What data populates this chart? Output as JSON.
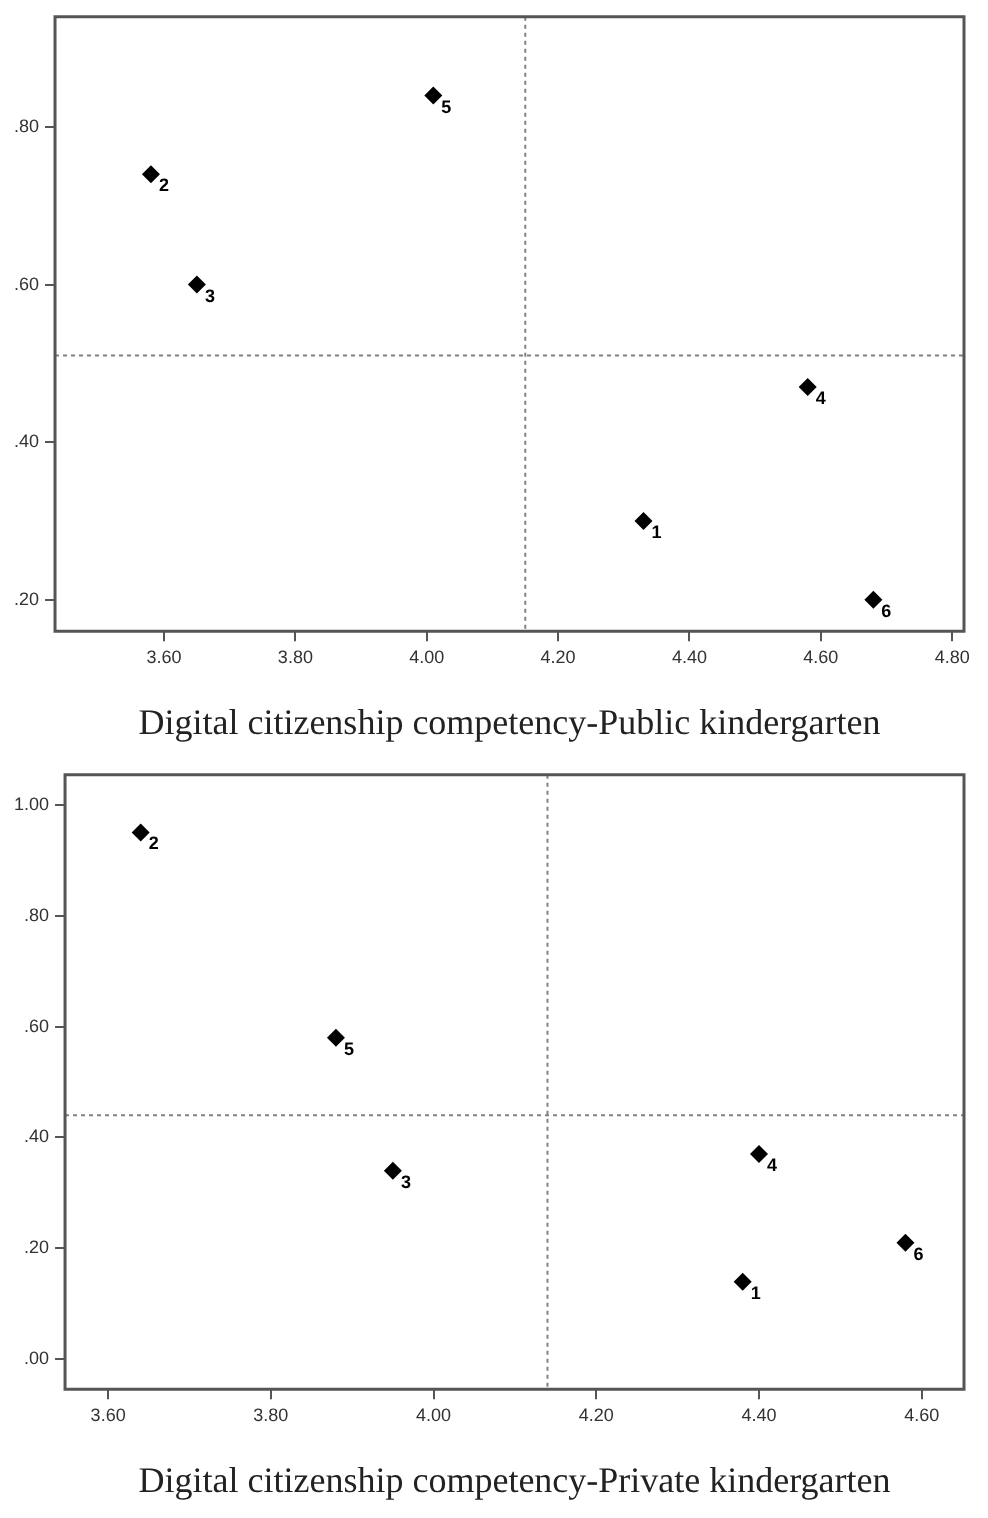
{
  "chart_data": [
    {
      "type": "scatter",
      "xlabel": "Digital citizenship competency-Public kindergarten",
      "series": [
        {
          "color": "#000000",
          "x": [
            4.33,
            3.58,
            3.65,
            4.58,
            4.01,
            4.68
          ],
          "values": [
            0.3,
            0.74,
            0.6,
            0.47,
            0.84,
            0.2
          ]
        }
      ],
      "marker": "diamond",
      "grid": false,
      "legend": false,
      "xlim": [
        3.434,
        4.818
      ],
      "ylim": [
        0.16,
        0.94
      ],
      "xticks": [
        {
          "value": 3.6,
          "label": "3.60"
        },
        {
          "value": 3.8,
          "label": "3.80"
        },
        {
          "value": 4.0,
          "label": "4.00"
        },
        {
          "value": 4.2,
          "label": "4.20"
        },
        {
          "value": 4.4,
          "label": "4.40"
        },
        {
          "value": 4.6,
          "label": "4.60"
        },
        {
          "value": 4.8,
          "label": "4.80"
        }
      ],
      "yticks": [
        {
          "value": 0.2,
          "label": ".20"
        },
        {
          "value": 0.4,
          "label": ".40"
        },
        {
          "value": 0.6,
          "label": ".60"
        },
        {
          "value": 0.8,
          "label": ".80"
        }
      ],
      "ref_lines": [
        {
          "axis": "x",
          "value": 4.15,
          "color": "#808080",
          "line_style": "dotted"
        },
        {
          "axis": "y",
          "value": 0.51,
          "color": "#808080",
          "line_style": "dotted"
        }
      ],
      "annotations": [
        {
          "text": "1",
          "x": 4.33,
          "y": 0.3
        },
        {
          "text": "2",
          "x": 3.58,
          "y": 0.74
        },
        {
          "text": "3",
          "x": 3.65,
          "y": 0.6
        },
        {
          "text": "4",
          "x": 4.58,
          "y": 0.47
        },
        {
          "text": "5",
          "x": 4.01,
          "y": 0.84
        },
        {
          "text": "6",
          "x": 4.68,
          "y": 0.2
        }
      ]
    },
    {
      "type": "scatter",
      "xlabel": "Digital citizenship competency-Private kindergarten",
      "series": [
        {
          "color": "#000000",
          "x": [
            4.38,
            3.64,
            3.95,
            4.4,
            3.88,
            4.58
          ],
          "values": [
            0.14,
            0.95,
            0.34,
            0.37,
            0.58,
            0.21
          ]
        }
      ],
      "marker": "diamond",
      "grid": false,
      "legend": false,
      "xlim": [
        3.547,
        4.652
      ],
      "ylim": [
        -0.054,
        1.054
      ],
      "xticks": [
        {
          "value": 3.6,
          "label": "3.60"
        },
        {
          "value": 3.8,
          "label": "3.80"
        },
        {
          "value": 4.0,
          "label": "4.00"
        },
        {
          "value": 4.2,
          "label": "4.20"
        },
        {
          "value": 4.4,
          "label": "4.40"
        },
        {
          "value": 4.6,
          "label": "4.60"
        }
      ],
      "yticks": [
        {
          "value": 0.0,
          "label": ".00"
        },
        {
          "value": 0.2,
          "label": ".20"
        },
        {
          "value": 0.4,
          "label": ".40"
        },
        {
          "value": 0.6,
          "label": ".60"
        },
        {
          "value": 0.8,
          "label": ".80"
        },
        {
          "value": 1.0,
          "label": "1.00"
        }
      ],
      "ref_lines": [
        {
          "axis": "x",
          "value": 4.14,
          "color": "#808080",
          "line_style": "dotted"
        },
        {
          "axis": "y",
          "value": 0.44,
          "color": "#808080",
          "line_style": "dotted"
        }
      ],
      "annotations": [
        {
          "text": "1",
          "x": 4.38,
          "y": 0.14
        },
        {
          "text": "2",
          "x": 3.64,
          "y": 0.95
        },
        {
          "text": "3",
          "x": 3.95,
          "y": 0.34
        },
        {
          "text": "4",
          "x": 4.4,
          "y": 0.37
        },
        {
          "text": "5",
          "x": 3.88,
          "y": 0.58
        },
        {
          "text": "6",
          "x": 4.58,
          "y": 0.21
        }
      ]
    }
  ]
}
